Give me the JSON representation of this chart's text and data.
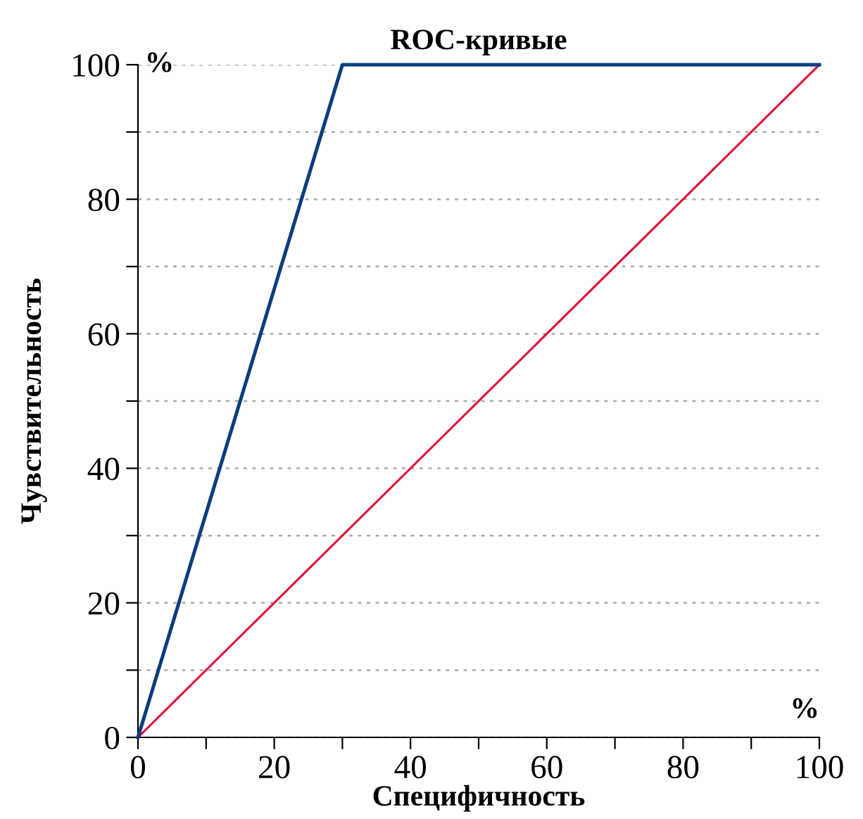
{
  "chart_data": {
    "type": "line",
    "title": "ROC-кривые",
    "xlabel": "Специфичность",
    "ylabel": "Чувствительность",
    "annotations": [
      "%",
      "%"
    ],
    "series": [
      {
        "color": "#0b3d7e",
        "x": [
          0,
          30,
          100
        ],
        "values": [
          0,
          100,
          100
        ]
      },
      {
        "color": "#e0103a",
        "x": [
          0,
          100
        ],
        "values": [
          0,
          100
        ]
      }
    ],
    "xlim": [
      0,
      100
    ],
    "ylim": [
      0,
      100
    ],
    "xticks": [
      0,
      {
        "value": 10,
        "label": null
      },
      20,
      {
        "value": 30,
        "label": null
      },
      40,
      {
        "value": 50,
        "label": null
      },
      60,
      {
        "value": 70,
        "label": null
      },
      80,
      {
        "value": 90,
        "label": null
      },
      100
    ],
    "yticks": [
      0,
      {
        "value": 10,
        "label": null
      },
      20,
      {
        "value": 30,
        "label": null
      },
      40,
      {
        "value": 50,
        "label": null
      },
      60,
      {
        "value": 70,
        "label": null
      },
      80,
      {
        "value": 90,
        "label": null
      },
      100
    ],
    "grid": "y",
    "marker": "none",
    "line_style": "solid",
    "legend": false
  }
}
